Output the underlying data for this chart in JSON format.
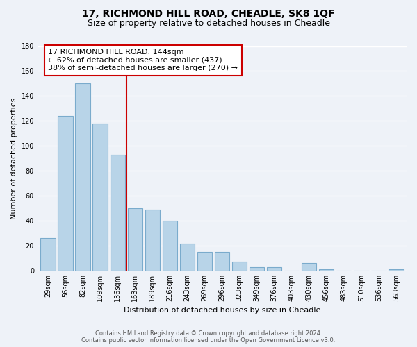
{
  "title": "17, RICHMOND HILL ROAD, CHEADLE, SK8 1QF",
  "subtitle": "Size of property relative to detached houses in Cheadle",
  "xlabel": "Distribution of detached houses by size in Cheadle",
  "ylabel": "Number of detached properties",
  "categories": [
    "29sqm",
    "56sqm",
    "82sqm",
    "109sqm",
    "136sqm",
    "163sqm",
    "189sqm",
    "216sqm",
    "243sqm",
    "269sqm",
    "296sqm",
    "323sqm",
    "349sqm",
    "376sqm",
    "403sqm",
    "430sqm",
    "456sqm",
    "483sqm",
    "510sqm",
    "536sqm",
    "563sqm"
  ],
  "values": [
    26,
    124,
    150,
    118,
    93,
    50,
    49,
    40,
    22,
    15,
    15,
    7,
    3,
    3,
    0,
    6,
    1,
    0,
    0,
    0,
    1
  ],
  "bar_color": "#b8d4e8",
  "bar_edge_color": "#7aabcc",
  "vline_x": 4.5,
  "vline_color": "#cc0000",
  "annotation_lines": [
    "17 RICHMOND HILL ROAD: 144sqm",
    "← 62% of detached houses are smaller (437)",
    "38% of semi-detached houses are larger (270) →"
  ],
  "ylim": [
    0,
    180
  ],
  "yticks": [
    0,
    20,
    40,
    60,
    80,
    100,
    120,
    140,
    160,
    180
  ],
  "footer_line1": "Contains HM Land Registry data © Crown copyright and database right 2024.",
  "footer_line2": "Contains public sector information licensed under the Open Government Licence v3.0.",
  "bg_color": "#eef2f8",
  "grid_color": "#ffffff",
  "title_fontsize": 10,
  "subtitle_fontsize": 9,
  "tick_fontsize": 7,
  "ylabel_fontsize": 8,
  "xlabel_fontsize": 8,
  "annotation_fontsize": 8,
  "footer_fontsize": 6
}
